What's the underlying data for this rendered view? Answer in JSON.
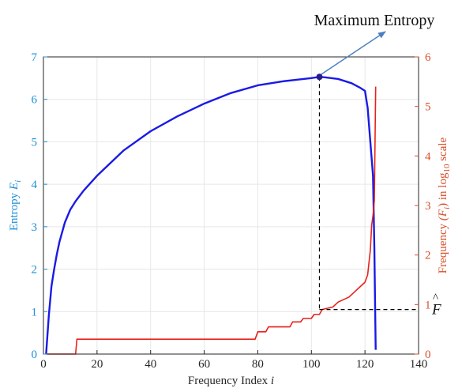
{
  "chart_data": {
    "type": "line",
    "x_axis": {
      "label_main": "Frequency Index",
      "label_var": "i",
      "range": [
        0,
        140
      ],
      "ticks": [
        0,
        20,
        40,
        60,
        80,
        100,
        120,
        140
      ]
    },
    "y_left": {
      "label_main": "Entropy",
      "label_var": "E",
      "label_sub": "i",
      "range": [
        0,
        7
      ],
      "ticks": [
        0,
        1,
        2,
        3,
        4,
        5,
        6,
        7
      ],
      "color": "#1f8fd6"
    },
    "y_right": {
      "label_pre": "Frequency",
      "label_var": "(F",
      "label_sub": "i",
      "label_mid": ") in log",
      "label_log_sub": "10",
      "label_post": "scale",
      "range": [
        0,
        6
      ],
      "ticks": [
        0,
        1,
        2,
        3,
        4,
        5,
        6
      ],
      "color": "#d9502a"
    },
    "grid": true,
    "series": [
      {
        "axis": "left",
        "color": "#1a1ae6",
        "points": [
          [
            1,
            0
          ],
          [
            2,
            0.9
          ],
          [
            3,
            1.6
          ],
          [
            4,
            2.0
          ],
          [
            5,
            2.35
          ],
          [
            6,
            2.65
          ],
          [
            8,
            3.1
          ],
          [
            10,
            3.4
          ],
          [
            12,
            3.6
          ],
          [
            15,
            3.85
          ],
          [
            20,
            4.2
          ],
          [
            25,
            4.5
          ],
          [
            30,
            4.8
          ],
          [
            40,
            5.25
          ],
          [
            50,
            5.6
          ],
          [
            60,
            5.9
          ],
          [
            70,
            6.15
          ],
          [
            80,
            6.33
          ],
          [
            90,
            6.43
          ],
          [
            100,
            6.5
          ],
          [
            103,
            6.53
          ],
          [
            105,
            6.52
          ],
          [
            110,
            6.48
          ],
          [
            115,
            6.38
          ],
          [
            118,
            6.28
          ],
          [
            120,
            6.2
          ],
          [
            121,
            5.8
          ],
          [
            122,
            5.0
          ],
          [
            123,
            4.2
          ],
          [
            123.5,
            2.5
          ],
          [
            124,
            0.1
          ]
        ]
      },
      {
        "axis": "right",
        "color": "#e8211a",
        "points": [
          [
            1,
            0
          ],
          [
            12,
            0
          ],
          [
            12.5,
            0.3
          ],
          [
            79,
            0.3
          ],
          [
            80,
            0.45
          ],
          [
            83,
            0.45
          ],
          [
            84,
            0.55
          ],
          [
            92,
            0.55
          ],
          [
            93,
            0.65
          ],
          [
            96,
            0.65
          ],
          [
            97,
            0.72
          ],
          [
            100,
            0.72
          ],
          [
            101,
            0.8
          ],
          [
            103,
            0.8
          ],
          [
            104,
            0.9
          ],
          [
            108,
            0.95
          ],
          [
            110,
            1.05
          ],
          [
            112,
            1.1
          ],
          [
            114,
            1.15
          ],
          [
            116,
            1.25
          ],
          [
            118,
            1.35
          ],
          [
            120,
            1.45
          ],
          [
            121,
            1.6
          ],
          [
            122,
            2.1
          ],
          [
            122.5,
            2.6
          ],
          [
            123,
            2.8
          ],
          [
            123.5,
            3.1
          ],
          [
            124,
            5.4
          ]
        ]
      }
    ],
    "annotations": {
      "max_label": "Maximum Entropy",
      "max_point": [
        103,
        6.53
      ],
      "f_hat_label": "F",
      "f_hat_value": 0.9
    }
  }
}
